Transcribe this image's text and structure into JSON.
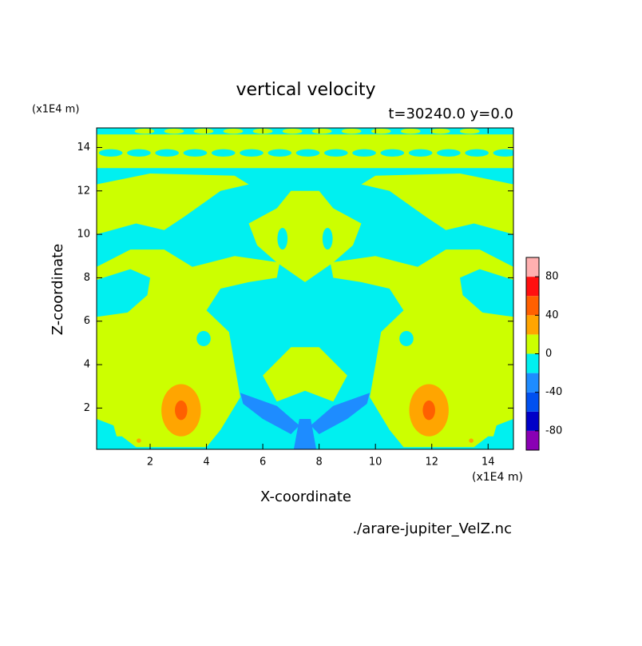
{
  "chart_data": {
    "type": "contour",
    "title": "vertical velocity",
    "subtitle": "t=30240.0 y=0.0",
    "x_label": "X-coordinate",
    "y_label": "Z-coordinate",
    "x_unit": "(x1E4 m)",
    "y_unit": "(x1E4 m)",
    "source": "./arare-jupiter_VelZ.nc",
    "xlim": [
      0.1,
      14.9
    ],
    "ylim": [
      0.1,
      14.9
    ],
    "xticks": [
      2,
      4,
      6,
      8,
      10,
      12,
      14
    ],
    "yticks": [
      2,
      4,
      6,
      8,
      10,
      12,
      14
    ],
    "colorbar": {
      "levels": [
        -100,
        -80,
        -60,
        -40,
        -20,
        0,
        20,
        40,
        60,
        80,
        100
      ],
      "colors": [
        "#8a00b4",
        "#0000c8",
        "#0050f0",
        "#1e8cff",
        "#00f0f0",
        "#ccff00",
        "#ffa500",
        "#ff6000",
        "#ff1010",
        "#ffb0b0"
      ],
      "ticks": [
        -80,
        -40,
        0,
        40,
        80
      ]
    }
  }
}
